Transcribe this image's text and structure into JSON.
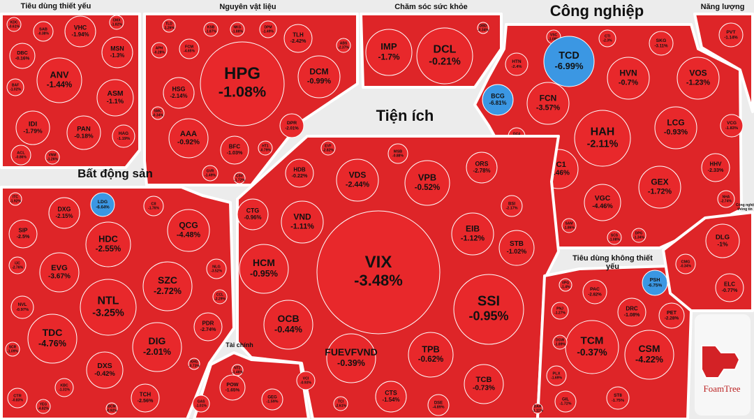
{
  "chart_data": {
    "type": "treemap",
    "logo": "FoamTree",
    "groups": [
      {
        "name": "Tiêu dùng thiết yếu",
        "categories": [
          "KDC",
          "SAB",
          "VHC",
          "CMX",
          "DBC",
          "MSN",
          "ANV",
          "BAF",
          "ASM",
          "IDI",
          "PAN",
          "HAG",
          "ACL",
          "VNM"
        ],
        "values": [
          -0.61,
          -0.38,
          -1.94,
          -1.82,
          -0.16,
          -1.3,
          -1.44,
          -1.02,
          -1.1,
          -1.79,
          -0.18,
          -1.19,
          -0.86,
          -1.26
        ],
        "value_labels": [
          "-0.61%",
          "-0.38%",
          "-1.94%",
          "-1.82%",
          "-0.16%",
          "-1.3%",
          "-1.44%",
          "-1.02%",
          "-1.1%",
          "-1.79%",
          "-0.18%",
          "-1.19%",
          "-0.86%",
          "-1.26%"
        ],
        "colors": [
          "#e8282b",
          "#e8282b",
          "#e8282b",
          "#e8282b",
          "#e8282b",
          "#e8282b",
          "#e8282b",
          "#e8282b",
          "#e8282b",
          "#e8282b",
          "#e8282b",
          "#e8282b",
          "#e8282b",
          "#e8282b"
        ]
      },
      {
        "name": "Nguyên vật liệu",
        "categories": [
          "TLD",
          "KSB",
          "NKG",
          "DPM",
          "TLH",
          "ABS",
          "APH",
          "FCM",
          "HPG",
          "DCM",
          "HSG",
          "SMC",
          "DPR",
          "AAA",
          "BFC",
          "HT1",
          "GVR",
          "CSV"
        ],
        "values": [
          -1.26,
          -1.87,
          -1.88,
          -1.49,
          -2.42,
          -2.37,
          -0.28,
          -4.65,
          -1.08,
          -0.99,
          -2.14,
          -0.34,
          -2.01,
          -0.92,
          -1.03,
          -0.79,
          -1.49,
          -1.72
        ],
        "value_labels": [
          "-1.26%",
          "-1.87%",
          "-1.88%",
          "-1.49%",
          "-2.42%",
          "-2.37%",
          "-0.28%",
          "-4.65%",
          "-1.08%",
          "-0.99%",
          "-2.14%",
          "-0.34%",
          "-2.01%",
          "-0.92%",
          "-1.03%",
          "-0.79%",
          "-1.49%",
          "-1.72%"
        ],
        "colors": [
          "#e8282b",
          "#e8282b",
          "#e8282b",
          "#e8282b",
          "#e8282b",
          "#e8282b",
          "#e8282b",
          "#e8282b",
          "#e8282b",
          "#e8282b",
          "#e8282b",
          "#e8282b",
          "#e8282b",
          "#e8282b",
          "#e8282b",
          "#e8282b",
          "#e8282b",
          "#e8282b"
        ]
      },
      {
        "name": "Chăm sóc sức khỏe",
        "categories": [
          "IMP",
          "DCL",
          "DBD"
        ],
        "values": [
          -1.7,
          -0.21,
          -0.34
        ],
        "value_labels": [
          "-1.7%",
          "-0.21%",
          "-0.34%"
        ],
        "colors": [
          "#e8282b",
          "#e8282b",
          "#e8282b"
        ]
      },
      {
        "name": "Công nghiệp",
        "categories": [
          "VSC",
          "TCD",
          "CTI",
          "SKG",
          "HTN",
          "HVN",
          "VOS",
          "BCG",
          "FCN",
          "DC4",
          "HAH",
          "LCG",
          "PC1",
          "GEX",
          "VGC",
          "SAM",
          "SCS",
          "DPG",
          "VCG",
          "HHV",
          "NHA"
        ],
        "values": [
          -1.08,
          -6.99,
          -2.3,
          -3.11,
          -2.4,
          -0.7,
          -1.23,
          -6.81,
          -3.57,
          -1.98,
          -2.11,
          -0.93,
          -1.46,
          -1.72,
          -4.46,
          -1.86,
          -1.08,
          -1.34,
          -1.83,
          -2.33,
          -2.74
        ],
        "value_labels": [
          "-1.08%",
          "-6.99%",
          "-2.3%",
          "-3.11%",
          "-2.4%",
          "-0.7%",
          "-1.23%",
          "-6.81%",
          "-3.57%",
          "-1.98%",
          "-2.11%",
          "-0.93%",
          "-1.46%",
          "-1.72%",
          "-4.46%",
          "-1.86%",
          "-1.08%",
          "-1.34%",
          "-1.83%",
          "-2.33%",
          "-2.74%"
        ],
        "colors": [
          "#e8282b",
          "#3b97e3",
          "#e8282b",
          "#e8282b",
          "#e8282b",
          "#e8282b",
          "#e8282b",
          "#3b97e3",
          "#e8282b",
          "#e8282b",
          "#e8282b",
          "#e8282b",
          "#e8282b",
          "#e8282b",
          "#e8282b",
          "#e8282b",
          "#e8282b",
          "#e8282b",
          "#e8282b",
          "#e8282b",
          "#e8282b"
        ]
      },
      {
        "name": "Năng lượng",
        "categories": [
          "PVT"
        ],
        "values": [
          -1.14
        ],
        "value_labels": [
          "-1.14%"
        ],
        "colors": [
          "#e8282b"
        ]
      },
      {
        "name": "Bất động sản",
        "categories": [
          "ITC",
          "DXG",
          "LDG",
          "CII",
          "SIP",
          "HDC",
          "QCG",
          "IJC",
          "EVG",
          "NLG",
          "SZC",
          "NTL",
          "NVL",
          "CCL",
          "PDR",
          "TDC",
          "DIG",
          "SCR",
          "DXS",
          "KBC",
          "TCH",
          "CTR",
          "YEG",
          "KHG",
          "BCM"
        ],
        "values": [
          -1.92,
          -2.15,
          -6.64,
          -1.76,
          -2.5,
          -2.55,
          -4.48,
          -2.76,
          -3.67,
          -3.52,
          -2.72,
          -3.25,
          -0.97,
          -2.29,
          -2.74,
          -4.76,
          -2.01,
          -1.09,
          -0.42,
          -1.31,
          -2.56,
          -0.83,
          -4.82,
          -0.73,
          -0.92
        ],
        "value_labels": [
          "-1.92%",
          "-2.15%",
          "-6.64%",
          "-1.76%",
          "-2.5%",
          "-2.55%",
          "-4.48%",
          "-2.76%",
          "-3.67%",
          "-3.52%",
          "-2.72%",
          "-3.25%",
          "-0.97%",
          "-2.29%",
          "-2.74%",
          "-4.76%",
          "-2.01%",
          "-1.09%",
          "-0.42%",
          "-1.31%",
          "-2.56%",
          "-0.83%",
          "-4.82%",
          "-0.73%",
          "-0.92%"
        ],
        "colors": [
          "#e8282b",
          "#e8282b",
          "#3b97e3",
          "#e8282b",
          "#e8282b",
          "#e8282b",
          "#e8282b",
          "#e8282b",
          "#e8282b",
          "#e8282b",
          "#e8282b",
          "#e8282b",
          "#e8282b",
          "#e8282b",
          "#e8282b",
          "#e8282b",
          "#e8282b",
          "#e8282b",
          "#e8282b",
          "#e8282b",
          "#e8282b",
          "#e8282b",
          "#e8282b",
          "#e8282b",
          "#e8282b"
        ]
      },
      {
        "name": "Tiện ích",
        "categories": [
          "NT2",
          "POW",
          "GEG",
          "GAS"
        ],
        "values": [
          -1.46,
          -1.65,
          -1.59,
          -1.01
        ],
        "value_labels": [
          "-1.46%",
          "-1.65%",
          "-1.59%",
          "-1.01%"
        ],
        "colors": [
          "#e8282b",
          "#e8282b",
          "#e8282b",
          "#e8282b"
        ]
      },
      {
        "name": "Tài chính",
        "categories": [
          "EVF",
          "MSB",
          "HDB",
          "VDS",
          "VPB",
          "ORS",
          "CTG",
          "VND",
          "BSI",
          "EIB",
          "HCM",
          "VIX",
          "STB",
          "OCB",
          "SSI",
          "FUEVFVND",
          "TPB",
          "VCI",
          "TCI",
          "CTS",
          "TCB",
          "DSE"
        ],
        "values": [
          -2.82,
          -0.88,
          -0.22,
          -2.44,
          -0.52,
          -2.78,
          -0.96,
          -1.11,
          -2.17,
          -1.12,
          -0.95,
          -3.48,
          -1.02,
          -0.44,
          -0.95,
          -0.39,
          -0.62,
          -0.93,
          -2.61,
          -1.54,
          -0.73,
          -4.89
        ],
        "value_labels": [
          "-2.82%",
          "-0.88%",
          "-0.22%",
          "-2.44%",
          "-0.52%",
          "-2.78%",
          "-0.96%",
          "-1.11%",
          "-2.17%",
          "-1.12%",
          "-0.95%",
          "-3.48%",
          "-1.02%",
          "-0.44%",
          "-0.95%",
          "-0.39%",
          "-0.62%",
          "-0.93%",
          "-2.61%",
          "-1.54%",
          "-0.73%",
          "-4.89%"
        ],
        "colors": [
          "#e8282b",
          "#e8282b",
          "#e8282b",
          "#e8282b",
          "#e8282b",
          "#e8282b",
          "#e8282b",
          "#e8282b",
          "#e8282b",
          "#e8282b",
          "#e8282b",
          "#e8282b",
          "#e8282b",
          "#e8282b",
          "#e8282b",
          "#e8282b",
          "#e8282b",
          "#e8282b",
          "#e8282b",
          "#e8282b",
          "#e8282b",
          "#e8282b"
        ]
      },
      {
        "name": "Tiêu dùng không thiết yếu",
        "categories": [
          "VPG",
          "PSH",
          "PAC",
          "PNJ",
          "DRC",
          "PET",
          "TCM",
          "CSM",
          "DGW",
          "PLX",
          "GIL",
          "ST8",
          "DAH"
        ],
        "values": [
          -1.4,
          -6.75,
          -2.82,
          -1.27,
          -1.08,
          -2.28,
          -0.37,
          -4.22,
          -1.89,
          -1.69,
          -1.72,
          -1.75,
          -1.11
        ],
        "value_labels": [
          "-1.4%",
          "-6.75%",
          "-2.82%",
          "-1.27%",
          "-1.08%",
          "-2.28%",
          "-0.37%",
          "-4.22%",
          "-1.89%",
          "-1.69%",
          "-1.72%",
          "-1.75%",
          "-1.11%"
        ],
        "colors": [
          "#e8282b",
          "#3b97e3",
          "#e8282b",
          "#e8282b",
          "#e8282b",
          "#e8282b",
          "#e8282b",
          "#e8282b",
          "#e8282b",
          "#e8282b",
          "#e8282b",
          "#e8282b",
          "#e8282b"
        ]
      },
      {
        "name": "Công nghệ thông tin",
        "categories": [
          "DLG",
          "CMG",
          "ELC"
        ],
        "values": [
          -1,
          -0.34,
          -0.77
        ],
        "value_labels": [
          "-1%",
          "-0.34%",
          "-0.77%"
        ],
        "colors": [
          "#e8282b",
          "#e8282b",
          "#e8282b"
        ]
      }
    ]
  }
}
